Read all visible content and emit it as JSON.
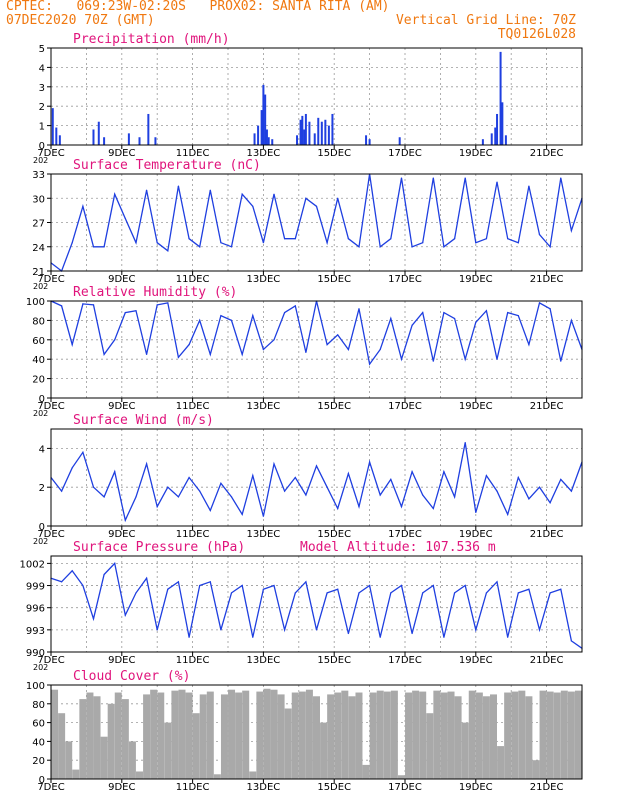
{
  "header": {
    "line1_left": "CPTEC:   069:23W-02:20S   PROX02: SANTA RITA (AM)",
    "line2_left": "07DEC2020 70Z (GMT)",
    "line2_right": "Vertical Grid Line: 70Z",
    "line3_right": "TQ0126L028"
  },
  "colors": {
    "header": "#f07810",
    "title": "#e0147c",
    "series": "#1f3fe0",
    "cloud": "#a9a9a9"
  },
  "x_axis": {
    "tick_labels": [
      "7DEC",
      "9DEC",
      "11DEC",
      "13DEC",
      "15DEC",
      "17DEC",
      "19DEC",
      "21DEC"
    ],
    "tick_days": [
      7,
      9,
      11,
      13,
      15,
      17,
      19,
      21
    ],
    "range_days": [
      7,
      22
    ],
    "extra_label": "202"
  },
  "chart_data": [
    {
      "id": "precip",
      "type": "bar",
      "title": "Precipitation (mm/h)",
      "ylim": [
        0,
        5
      ],
      "yticks": [
        0,
        1,
        2,
        3,
        4,
        5
      ],
      "grid": true,
      "x_unit": "day of December 2020",
      "x": [
        7.05,
        7.15,
        7.25,
        8.2,
        8.35,
        8.5,
        9.2,
        9.5,
        9.75,
        9.95,
        12.75,
        12.85,
        12.95,
        13.0,
        13.05,
        13.1,
        13.15,
        13.25,
        13.95,
        14.05,
        14.1,
        14.15,
        14.2,
        14.3,
        14.45,
        14.55,
        14.65,
        14.75,
        14.85,
        14.95,
        15.9,
        16.0,
        16.85,
        19.2,
        19.45,
        19.55,
        19.6,
        19.7,
        19.75,
        19.85
      ],
      "values": [
        1.9,
        0.9,
        0.5,
        0.8,
        1.2,
        0.4,
        0.6,
        0.4,
        1.6,
        0.4,
        0.6,
        1.0,
        1.8,
        3.1,
        2.6,
        0.8,
        0.4,
        0.3,
        0.5,
        1.3,
        1.5,
        0.8,
        1.6,
        1.2,
        0.6,
        1.4,
        1.2,
        1.3,
        1.0,
        1.6,
        0.5,
        0.3,
        0.4,
        0.3,
        0.6,
        0.9,
        1.6,
        4.8,
        2.2,
        0.5
      ]
    },
    {
      "id": "temperature",
      "type": "line",
      "title": "Surface Temperature (nC)",
      "ylim": [
        21,
        33
      ],
      "yticks": [
        21,
        24,
        27,
        30,
        33
      ],
      "grid": true,
      "x": [
        7.0,
        7.3,
        7.6,
        7.9,
        8.2,
        8.5,
        8.8,
        9.1,
        9.4,
        9.7,
        10.0,
        10.3,
        10.6,
        10.9,
        11.2,
        11.5,
        11.8,
        12.1,
        12.4,
        12.7,
        13.0,
        13.3,
        13.6,
        13.9,
        14.2,
        14.5,
        14.8,
        15.1,
        15.4,
        15.7,
        16.0,
        16.3,
        16.6,
        16.9,
        17.2,
        17.5,
        17.8,
        18.1,
        18.4,
        18.7,
        19.0,
        19.3,
        19.6,
        19.9,
        20.2,
        20.5,
        20.8,
        21.1,
        21.4,
        21.7,
        22.0
      ],
      "values": [
        22.0,
        21.0,
        24.5,
        29.0,
        24.0,
        24.0,
        30.5,
        27.5,
        24.5,
        31.0,
        24.5,
        23.5,
        31.5,
        25.0,
        24.0,
        31.0,
        24.5,
        24.0,
        30.5,
        29.0,
        24.5,
        30.5,
        25.0,
        25.0,
        30.0,
        29.0,
        24.5,
        30.0,
        25.0,
        24.0,
        33.0,
        24.0,
        25.0,
        32.5,
        24.0,
        24.5,
        32.5,
        24.0,
        25.0,
        32.5,
        24.5,
        25.0,
        32.0,
        25.0,
        24.5,
        31.5,
        25.5,
        24.0,
        32.5,
        26.0,
        30.0
      ]
    },
    {
      "id": "humidity",
      "type": "line",
      "title": "Relative Humidity (%)",
      "ylim": [
        0,
        100
      ],
      "yticks": [
        0,
        20,
        40,
        60,
        80,
        100
      ],
      "grid": true,
      "x": [
        7.0,
        7.3,
        7.6,
        7.9,
        8.2,
        8.5,
        8.8,
        9.1,
        9.4,
        9.7,
        10.0,
        10.3,
        10.6,
        10.9,
        11.2,
        11.5,
        11.8,
        12.1,
        12.4,
        12.7,
        13.0,
        13.3,
        13.6,
        13.9,
        14.2,
        14.5,
        14.8,
        15.1,
        15.4,
        15.7,
        16.0,
        16.3,
        16.6,
        16.9,
        17.2,
        17.5,
        17.8,
        18.1,
        18.4,
        18.7,
        19.0,
        19.3,
        19.6,
        19.9,
        20.2,
        20.5,
        20.8,
        21.1,
        21.4,
        21.7,
        22.0
      ],
      "values": [
        100,
        95,
        55,
        97,
        96,
        45,
        60,
        88,
        90,
        45,
        96,
        98,
        42,
        55,
        80,
        45,
        85,
        80,
        45,
        85,
        50,
        60,
        88,
        95,
        47,
        100,
        55,
        65,
        50,
        92,
        35,
        50,
        82,
        40,
        75,
        88,
        38,
        88,
        82,
        40,
        78,
        90,
        40,
        88,
        85,
        55,
        98,
        92,
        38,
        80,
        50
      ]
    },
    {
      "id": "wind",
      "type": "line",
      "title": "Surface Wind (m/s)",
      "ylim": [
        0,
        5
      ],
      "yticks": [
        0,
        2,
        4
      ],
      "grid": true,
      "x": [
        7.0,
        7.3,
        7.6,
        7.9,
        8.2,
        8.5,
        8.8,
        9.1,
        9.4,
        9.7,
        10.0,
        10.3,
        10.6,
        10.9,
        11.2,
        11.5,
        11.8,
        12.1,
        12.4,
        12.7,
        13.0,
        13.3,
        13.6,
        13.9,
        14.2,
        14.5,
        14.8,
        15.1,
        15.4,
        15.7,
        16.0,
        16.3,
        16.6,
        16.9,
        17.2,
        17.5,
        17.8,
        18.1,
        18.4,
        18.7,
        19.0,
        19.3,
        19.6,
        19.9,
        20.2,
        20.5,
        20.8,
        21.1,
        21.4,
        21.7,
        22.0
      ],
      "values": [
        2.5,
        1.8,
        3.0,
        3.8,
        2.0,
        1.5,
        2.8,
        0.3,
        1.5,
        3.2,
        1.0,
        2.0,
        1.5,
        2.5,
        1.8,
        0.8,
        2.2,
        1.5,
        0.6,
        2.6,
        0.5,
        3.2,
        1.8,
        2.5,
        1.6,
        3.1,
        2.0,
        0.9,
        2.7,
        1.0,
        3.3,
        1.6,
        2.4,
        1.0,
        2.8,
        1.6,
        0.9,
        2.8,
        1.5,
        4.3,
        0.7,
        2.6,
        1.8,
        0.6,
        2.5,
        1.4,
        2.0,
        1.2,
        2.4,
        1.8,
        3.3
      ]
    },
    {
      "id": "pressure",
      "type": "line",
      "title": "Surface Pressure (hPa)",
      "annotation": "Model Altitude: 107.536  m",
      "ylim": [
        990,
        1003
      ],
      "yticks": [
        990,
        993,
        996,
        999,
        1002
      ],
      "grid": true,
      "x": [
        7.0,
        7.3,
        7.6,
        7.9,
        8.2,
        8.5,
        8.8,
        9.1,
        9.4,
        9.7,
        10.0,
        10.3,
        10.6,
        10.9,
        11.2,
        11.5,
        11.8,
        12.1,
        12.4,
        12.7,
        13.0,
        13.3,
        13.6,
        13.9,
        14.2,
        14.5,
        14.8,
        15.1,
        15.4,
        15.7,
        16.0,
        16.3,
        16.6,
        16.9,
        17.2,
        17.5,
        17.8,
        18.1,
        18.4,
        18.7,
        19.0,
        19.3,
        19.6,
        19.9,
        20.2,
        20.5,
        20.8,
        21.1,
        21.4,
        21.7,
        22.0
      ],
      "values": [
        1000,
        999.5,
        1001,
        999,
        994.5,
        1000.5,
        1002,
        995,
        998,
        1000,
        993,
        998.5,
        999.5,
        992,
        999,
        999.5,
        993,
        998,
        999,
        992,
        998.5,
        999,
        993,
        998,
        999.5,
        993,
        998,
        998.5,
        992.5,
        998,
        999,
        992,
        998,
        999,
        992.5,
        998,
        999,
        992,
        998,
        999,
        993,
        998,
        999.5,
        992,
        998,
        998.5,
        993,
        998,
        998.5,
        991.5,
        990.5
      ]
    },
    {
      "id": "cloud",
      "type": "bar",
      "title": "Cloud Cover (%)",
      "ylim": [
        0,
        100
      ],
      "yticks": [
        0,
        20,
        40,
        60,
        80,
        100
      ],
      "grid": true,
      "x": [
        7.1,
        7.3,
        7.5,
        7.7,
        7.9,
        8.1,
        8.3,
        8.5,
        8.7,
        8.9,
        9.1,
        9.3,
        9.5,
        9.7,
        9.9,
        10.1,
        10.3,
        10.5,
        10.7,
        10.9,
        11.1,
        11.3,
        11.5,
        11.7,
        11.9,
        12.1,
        12.3,
        12.5,
        12.7,
        12.9,
        13.1,
        13.3,
        13.5,
        13.7,
        13.9,
        14.1,
        14.3,
        14.5,
        14.7,
        14.9,
        15.1,
        15.3,
        15.5,
        15.7,
        15.9,
        16.1,
        16.3,
        16.5,
        16.7,
        16.9,
        17.1,
        17.3,
        17.5,
        17.7,
        17.9,
        18.1,
        18.3,
        18.5,
        18.7,
        18.9,
        19.1,
        19.3,
        19.5,
        19.7,
        19.9,
        20.1,
        20.3,
        20.5,
        20.7,
        20.9,
        21.1,
        21.3,
        21.5,
        21.7,
        21.9
      ],
      "values": [
        95,
        70,
        40,
        10,
        85,
        92,
        88,
        45,
        80,
        92,
        85,
        40,
        8,
        90,
        95,
        92,
        60,
        94,
        95,
        92,
        70,
        90,
        93,
        5,
        90,
        95,
        92,
        94,
        8,
        93,
        96,
        95,
        90,
        75,
        92,
        93,
        95,
        88,
        60,
        90,
        92,
        94,
        88,
        92,
        15,
        92,
        94,
        93,
        94,
        4,
        92,
        94,
        93,
        70,
        94,
        92,
        93,
        88,
        60,
        94,
        92,
        88,
        90,
        35,
        92,
        93,
        94,
        88,
        20,
        94,
        93,
        92,
        94,
        93,
        94
      ]
    }
  ]
}
